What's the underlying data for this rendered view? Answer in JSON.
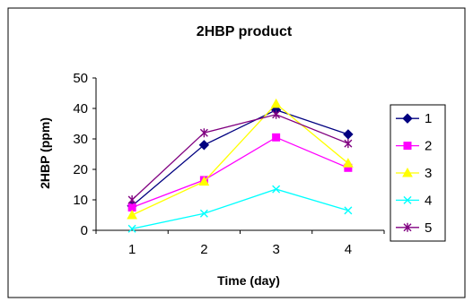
{
  "chart_data": {
    "type": "line",
    "title": "2HBP product",
    "xlabel": "Time (day)",
    "ylabel": "2HBP (ppm)",
    "categories": [
      "1",
      "2",
      "3",
      "4"
    ],
    "ylim": [
      0,
      50
    ],
    "yticks": [
      "0",
      "10",
      "20",
      "30",
      "40",
      "50"
    ],
    "grid": false,
    "legend_position": "right",
    "series": [
      {
        "name": "1",
        "color": "#000080",
        "marker": "diamond",
        "values": [
          8,
          28,
          39.5,
          31.5
        ]
      },
      {
        "name": "2",
        "color": "#FF00FF",
        "marker": "square",
        "values": [
          7.5,
          16.5,
          30.5,
          20.5
        ]
      },
      {
        "name": "3",
        "color": "#FFFF00",
        "marker": "triangle",
        "values": [
          5,
          16,
          41.5,
          22
        ]
      },
      {
        "name": "4",
        "color": "#00FFFF",
        "marker": "x",
        "values": [
          0.5,
          5.5,
          13.5,
          6.5
        ]
      },
      {
        "name": "5",
        "color": "#800080",
        "marker": "star",
        "values": [
          10,
          32,
          38,
          28.5
        ]
      }
    ]
  }
}
